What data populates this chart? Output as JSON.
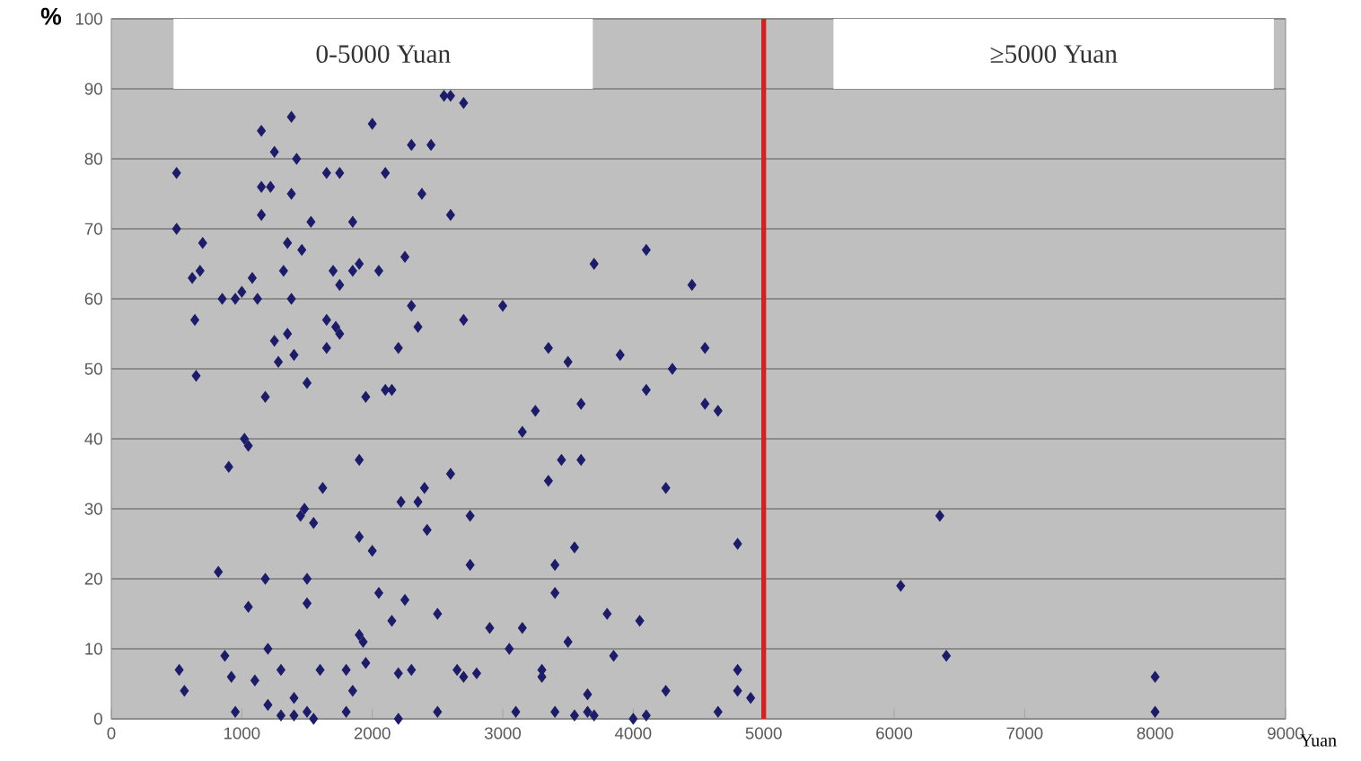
{
  "chart_data": {
    "type": "scatter",
    "xlabel": "Yuan",
    "ylabel": "%",
    "annotations": [
      "0-5000 Yuan",
      "≥5000 Yuan"
    ],
    "xlim": [
      0,
      9000
    ],
    "xticks": [
      0,
      1000,
      2000,
      3000,
      4000,
      5000,
      6000,
      7000,
      8000,
      9000
    ],
    "ylim": [
      0,
      100
    ],
    "yticks": [
      0,
      10,
      20,
      30,
      40,
      50,
      60,
      70,
      80,
      90,
      100
    ],
    "grid": "y",
    "marker": "diamond",
    "ref_lines": [
      {
        "axis": "x",
        "value": 5000,
        "color": "#d42020"
      }
    ],
    "series": [
      {
        "color": "#1c1c6a",
        "x": [
          500,
          500,
          520,
          560,
          620,
          640,
          650,
          680,
          700,
          820,
          850,
          870,
          900,
          920,
          950,
          950,
          1000,
          1020,
          1050,
          1050,
          1080,
          1100,
          1120,
          1150,
          1150,
          1150,
          1180,
          1180,
          1200,
          1200,
          1220,
          1250,
          1250,
          1280,
          1300,
          1300,
          1320,
          1350,
          1350,
          1380,
          1380,
          1380,
          1400,
          1400,
          1400,
          1420,
          1450,
          1460,
          1480,
          1500,
          1500,
          1500,
          1500,
          1530,
          1550,
          1550,
          1600,
          1620,
          1650,
          1650,
          1650,
          1700,
          1720,
          1750,
          1750,
          1750,
          1800,
          1800,
          1850,
          1850,
          1850,
          1900,
          1900,
          1900,
          1900,
          1930,
          1950,
          1950,
          2000,
          2000,
          2050,
          2050,
          2100,
          2100,
          2150,
          2150,
          2200,
          2200,
          2200,
          2220,
          2250,
          2250,
          2300,
          2300,
          2300,
          2350,
          2350,
          2380,
          2400,
          2420,
          2450,
          2500,
          2500,
          2550,
          2600,
          2600,
          2600,
          2650,
          2700,
          2700,
          2700,
          2750,
          2750,
          2800,
          2900,
          3000,
          3050,
          3100,
          3150,
          3150,
          3250,
          3300,
          3300,
          3350,
          3350,
          3400,
          3400,
          3400,
          3450,
          3500,
          3500,
          3550,
          3550,
          3600,
          3600,
          3650,
          3650,
          3700,
          3700,
          3800,
          3850,
          3900,
          4000,
          4050,
          4100,
          4100,
          4100,
          4250,
          4250,
          4300,
          4450,
          4550,
          4550,
          4650,
          4650,
          4800,
          4800,
          4800,
          4900,
          6050,
          6350,
          6400,
          8000,
          8000
        ],
        "values": [
          78,
          70,
          7,
          4,
          63,
          57,
          49,
          64,
          68,
          21,
          60,
          9,
          36,
          6,
          1,
          60,
          61,
          40,
          16,
          39,
          63,
          5.5,
          60,
          76,
          84,
          72,
          46,
          20,
          10,
          2,
          76,
          81,
          54,
          51,
          0.5,
          7,
          64,
          68,
          55,
          60,
          86,
          75,
          52,
          3,
          0.5,
          80,
          29,
          67,
          30,
          1,
          16.5,
          20,
          48,
          71,
          28,
          0,
          7,
          33,
          53,
          78,
          57,
          64,
          56,
          55,
          78,
          62,
          1,
          7,
          71,
          64,
          4,
          65,
          26,
          37,
          12,
          11,
          46,
          8,
          85,
          24,
          64,
          18,
          47,
          78,
          47,
          14,
          6.5,
          53,
          0,
          31,
          66,
          17,
          82,
          59,
          7,
          56,
          31,
          75,
          33,
          27,
          82,
          1,
          15,
          89,
          89,
          72,
          35,
          7,
          88,
          6,
          57,
          22,
          29,
          6.5,
          13,
          59,
          10,
          1,
          41,
          13,
          44,
          7,
          6,
          53,
          34,
          1,
          22,
          18,
          37,
          51,
          11,
          24.5,
          0.5,
          37,
          45,
          1,
          3.5,
          65,
          0.5,
          15,
          9,
          52,
          0,
          14,
          47,
          67,
          0.5,
          33,
          4,
          50,
          62,
          53,
          45,
          44,
          1,
          25,
          7,
          4,
          3,
          19,
          29,
          9,
          6,
          1
        ]
      }
    ]
  }
}
